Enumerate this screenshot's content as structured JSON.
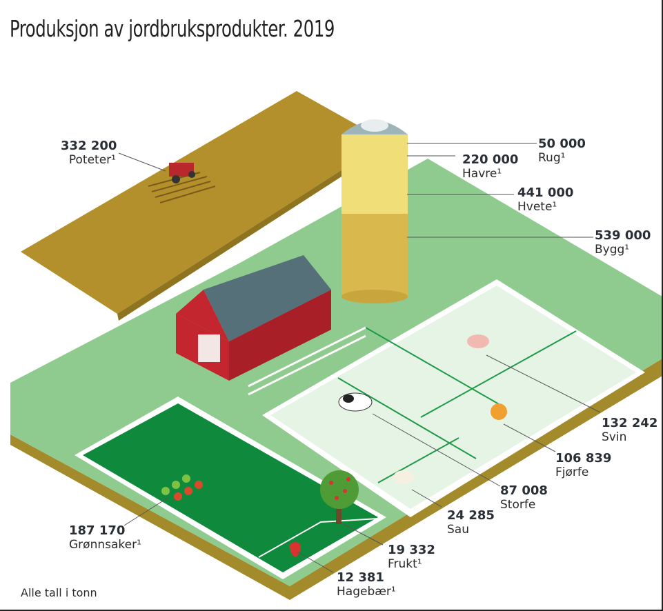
{
  "title": "Produksjon av jordbruksprodukter. 2019",
  "note": "Alle tall i tonn",
  "items": [
    {
      "key": "poteter",
      "value": "332 200",
      "name": "Poteter¹"
    },
    {
      "key": "rug",
      "value": "50 000",
      "name": "Rug¹"
    },
    {
      "key": "havre",
      "value": "220 000",
      "name": "Havre¹"
    },
    {
      "key": "hvete",
      "value": "441 000",
      "name": "Hvete¹"
    },
    {
      "key": "bygg",
      "value": "539 000",
      "name": "Bygg¹"
    },
    {
      "key": "svin",
      "value": "132 242",
      "name": "Svin"
    },
    {
      "key": "fjorfe",
      "value": "106 839",
      "name": "Fjørfe"
    },
    {
      "key": "storfe",
      "value": "87 008",
      "name": "Storfe"
    },
    {
      "key": "sau",
      "value": "24 285",
      "name": "Sau"
    },
    {
      "key": "gronnsaker",
      "value": "187 170",
      "name": "Grønnsaker¹"
    },
    {
      "key": "frukt",
      "value": "19 332",
      "name": "Frukt¹"
    },
    {
      "key": "hagebaer",
      "value": "12 381",
      "name": "Hagebær¹"
    }
  ],
  "colors": {
    "field_brown": "#b3902b",
    "grass": "#8fcb8e",
    "pasture": "#e6f4e6",
    "garden": "#0f8a3c",
    "barn_red": "#c4262f",
    "roof": "#56707a"
  }
}
